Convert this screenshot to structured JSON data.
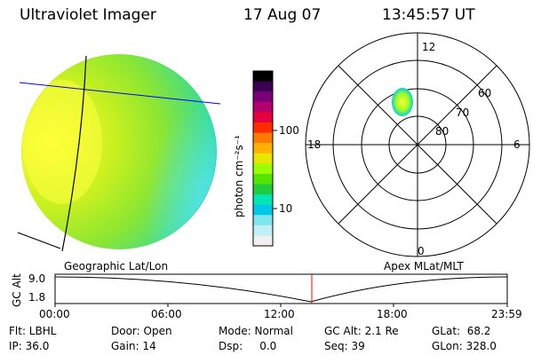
{
  "header": {
    "instrument": "Ultraviolet Imager",
    "date": "17 Aug 07",
    "time": "13:45:57 UT"
  },
  "colorbar": {
    "unit_label": "photon cm⁻²s⁻¹",
    "ticks": [
      "100",
      "10"
    ],
    "colors": [
      "#000000",
      "#3c0050",
      "#7a0078",
      "#b4006e",
      "#e6003c",
      "#ff2a00",
      "#ff7a00",
      "#ffb000",
      "#e6e600",
      "#9aff00",
      "#55e600",
      "#1fcc3c",
      "#00e6b4",
      "#00c8e6",
      "#7fe6f0",
      "#c0f0f5",
      "#f0f0f0"
    ]
  },
  "polar": {
    "mlt_labels": {
      "top": "12",
      "left": "18",
      "right": "6",
      "bottom": "0"
    },
    "lat_labels": [
      "60",
      "70",
      "80"
    ]
  },
  "image_colors": {
    "outer": "#00c8ff",
    "green": "#8fff00",
    "yellow": "#ffff00",
    "cyan_edge": "#00ffcc",
    "outline": "#000000",
    "latlon_line": "#0000ff",
    "cursor": "#ff0000"
  },
  "timeline": {
    "left_title": "Geographic Lat/Lon",
    "right_title": "Apex MLat/MLT",
    "y_label": "GC Alt",
    "y_ticks": [
      "9.0",
      "1.8"
    ],
    "x_ticks": [
      "00:00",
      "06:00",
      "12:00",
      "18:00",
      "23:59"
    ]
  },
  "footer": {
    "col1": [
      "Flt: LBHL",
      "IP: 36.0"
    ],
    "col2": [
      "Door: Open",
      "Gain: 14"
    ],
    "col3": [
      "Mode: Normal",
      "Dsp:     0.0"
    ],
    "col4": [
      "GC Alt: 2.1 Re",
      "Seq: 39"
    ],
    "col5": [
      "GLat:  68.2",
      "GLon: 328.0"
    ]
  }
}
